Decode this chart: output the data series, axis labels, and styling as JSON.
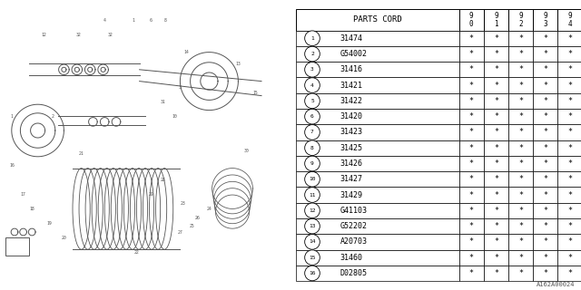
{
  "table_header": "PARTS CORD",
  "col_headers": [
    "9\n0",
    "9\n1",
    "9\n2",
    "9\n3",
    "9\n4"
  ],
  "rows": [
    {
      "num": "1",
      "code": "31474"
    },
    {
      "num": "2",
      "code": "G54002"
    },
    {
      "num": "3",
      "code": "31416"
    },
    {
      "num": "4",
      "code": "31421"
    },
    {
      "num": "5",
      "code": "31422"
    },
    {
      "num": "6",
      "code": "31420"
    },
    {
      "num": "7",
      "code": "31423"
    },
    {
      "num": "8",
      "code": "31425"
    },
    {
      "num": "9",
      "code": "31426"
    },
    {
      "num": "10",
      "code": "31427"
    },
    {
      "num": "11",
      "code": "31429"
    },
    {
      "num": "12",
      "code": "G41103"
    },
    {
      "num": "13",
      "code": "G52202"
    },
    {
      "num": "14",
      "code": "A20703"
    },
    {
      "num": "15",
      "code": "31460"
    },
    {
      "num": "16",
      "code": "D02805"
    }
  ],
  "circled": [
    "①",
    "②",
    "③",
    "④",
    "⑤",
    "⑥",
    "⑦",
    "⑧",
    "⑨",
    "⑩",
    "⑪",
    "⑫",
    "⑬",
    "⑭",
    "⑮",
    "⑯"
  ],
  "star": "*",
  "bg_color": "#ffffff",
  "line_color": "#000000",
  "text_color": "#000000",
  "watermark": "A162A00024",
  "num_cols": 5
}
